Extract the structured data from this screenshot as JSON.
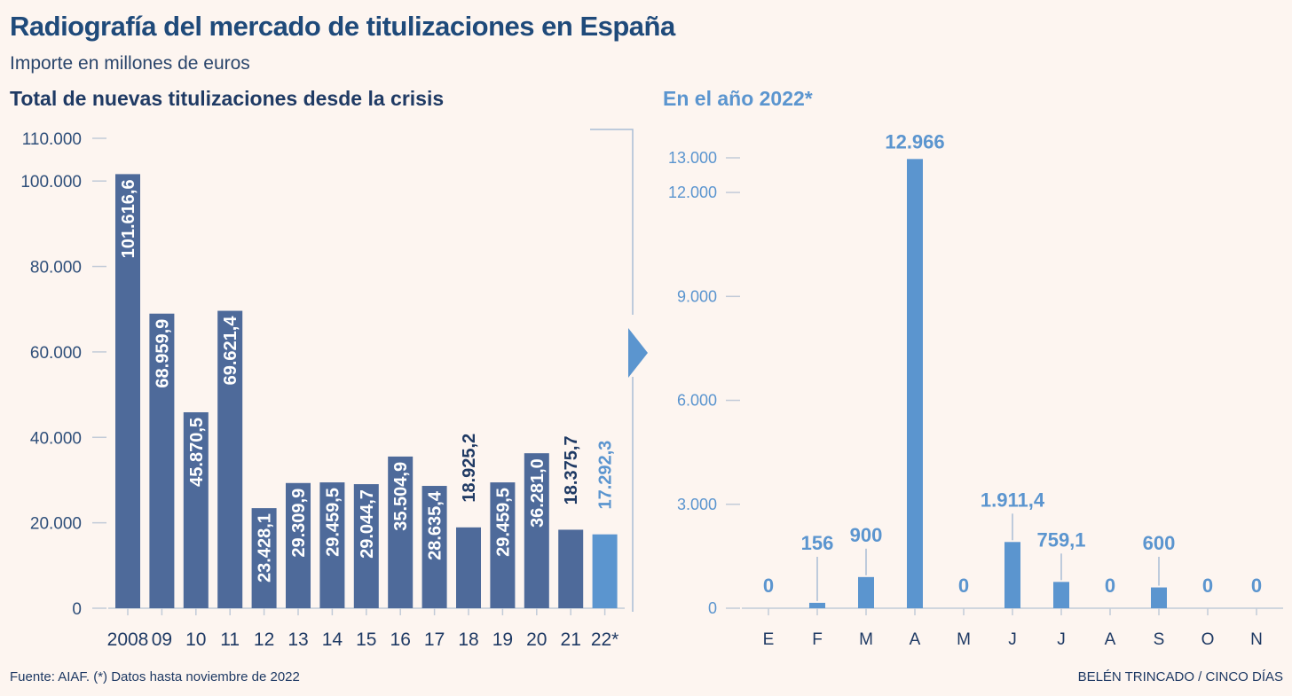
{
  "title": "Radiografía del mercado de titulizaciones en España",
  "subtitle": "Importe en millones de euros",
  "source": "Fuente: AIAF. (*) Datos hasta noviembre de 2022",
  "credit": "BELÉN TRINCADO / CINCO DÍAS",
  "colors": {
    "bar_dark": "#4e6a9a",
    "bar_highlight": "#5b95cf",
    "text_dark": "#1f3a64",
    "text_light": "#5b95cf",
    "background": "#fdf5f0"
  },
  "chart_data": [
    {
      "type": "bar",
      "title": "Total de nuevas titulizaciones desde la crisis",
      "categories": [
        "2008",
        "09",
        "10",
        "11",
        "12",
        "13",
        "14",
        "15",
        "16",
        "17",
        "18",
        "19",
        "20",
        "21",
        "22*"
      ],
      "values": [
        101616.6,
        68959.9,
        45870.5,
        69621.4,
        23428.1,
        29309.9,
        29459.5,
        29044.7,
        35504.9,
        28635.4,
        18925.2,
        29459.5,
        36281.0,
        18375.7,
        17292.3
      ],
      "value_labels": [
        "101.616,6",
        "68.959,9",
        "45.870,5",
        "69.621,4",
        "23.428,1",
        "29.309,9",
        "29.459,5",
        "29.044,7",
        "35.504,9",
        "28.635,4",
        "18.925,2",
        "29.459,5",
        "36.281,0",
        "18.375,7",
        "17.292,3"
      ],
      "highlight_index": 14,
      "yticks": [
        0,
        20000,
        40000,
        60000,
        80000,
        100000,
        110000
      ],
      "ytick_labels": [
        "0",
        "20.000",
        "40.000",
        "60.000",
        "80.000",
        "100.000",
        "110.000"
      ],
      "ylim": [
        0,
        110000
      ]
    },
    {
      "type": "bar",
      "title": "En el año 2022*",
      "categories": [
        "E",
        "F",
        "M",
        "A",
        "M",
        "J",
        "J",
        "A",
        "S",
        "O",
        "N"
      ],
      "values": [
        0,
        156,
        900,
        12966,
        0,
        1911.4,
        759.1,
        0,
        600,
        0,
        0
      ],
      "value_labels": [
        "0",
        "156",
        "900",
        "12.966",
        "0",
        "1.911,4",
        "759,1",
        "0",
        "600",
        "0",
        "0"
      ],
      "yticks": [
        0,
        3000,
        6000,
        9000,
        12000,
        13000
      ],
      "ytick_labels": [
        "0",
        "3.000",
        "6.000",
        "9.000",
        "12.000",
        "13.000"
      ],
      "ylim": [
        0,
        13000
      ]
    }
  ]
}
